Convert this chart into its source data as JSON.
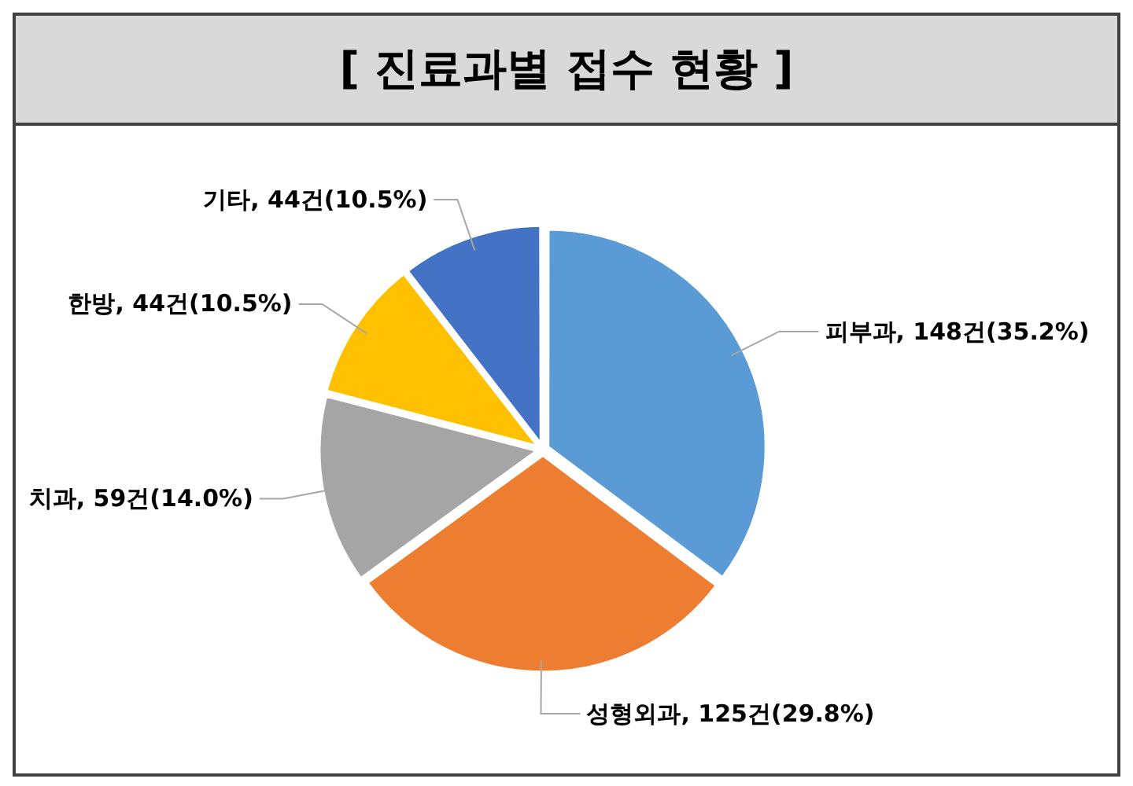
{
  "chart_data": {
    "type": "pie",
    "title": "[ 진료과별 접수 현황 ]",
    "categories": [
      "피부과",
      "성형외과",
      "치과",
      "한방",
      "기타"
    ],
    "values": [
      148,
      125,
      59,
      44,
      44
    ],
    "value_labels": [
      "148건(35.2%)",
      "125건(29.8%)",
      "59건(14.0%)",
      "44건(10.5%)",
      "44건(10.5%)"
    ],
    "colors": [
      "#5b9bd5",
      "#ed7d31",
      "#a5a5a5",
      "#ffc000",
      "#4472c4"
    ],
    "legend": false
  }
}
